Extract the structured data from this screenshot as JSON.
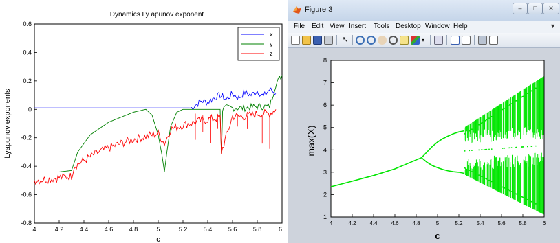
{
  "left_plot": {
    "chart_data": {
      "type": "line",
      "title": "Dynamics Ly apunov exponent",
      "xlabel": "c",
      "ylabel": "Lyapunov exponents",
      "xlim": [
        4,
        6
      ],
      "ylim": [
        -0.8,
        0.6
      ],
      "xticks": [
        "4",
        "4.2",
        "4.4",
        "4.6",
        "4.8",
        "5",
        "5.2",
        "5.4",
        "5.6",
        "5.8",
        "6"
      ],
      "yticks": [
        "-0.8",
        "-0.6",
        "-0.4",
        "-0.2",
        "0",
        "0.2",
        "0.4",
        "0.6"
      ],
      "legend_position": "top-right",
      "series": [
        {
          "name": "x",
          "color": "#0000ff",
          "x": [
            4.0,
            5.2,
            5.27,
            5.3,
            5.35,
            5.4,
            5.45,
            5.5,
            5.55,
            5.6,
            5.65,
            5.7,
            5.75,
            5.8,
            5.85,
            5.9,
            5.95
          ],
          "y": [
            0.01,
            0.01,
            0.01,
            0.03,
            0.06,
            0.05,
            0.08,
            0.1,
            0.07,
            0.11,
            0.08,
            0.12,
            0.1,
            0.13,
            0.09,
            0.14,
            0.11
          ]
        },
        {
          "name": "y",
          "color": "#008000",
          "x": [
            4.0,
            4.2,
            4.3,
            4.35,
            4.45,
            4.6,
            4.8,
            4.9,
            4.95,
            5.0,
            5.03,
            5.05,
            5.07,
            5.1,
            5.15,
            5.2,
            5.25,
            5.3,
            5.4,
            5.5,
            5.51,
            5.52,
            5.55,
            5.7,
            5.8,
            5.9,
            5.95,
            6.0
          ],
          "y": [
            -0.44,
            -0.44,
            -0.43,
            -0.3,
            -0.18,
            -0.09,
            -0.02,
            0.0,
            -0.04,
            -0.18,
            -0.32,
            -0.44,
            -0.3,
            -0.12,
            -0.02,
            0.0,
            0.0,
            0.0,
            0.0,
            0.0,
            -0.32,
            0.0,
            0.01,
            0.01,
            0.02,
            0.02,
            0.18,
            0.24
          ]
        },
        {
          "name": "z",
          "color": "#ff0000",
          "x": [
            4.0,
            4.1,
            4.2,
            4.3,
            4.32,
            4.4,
            4.5,
            4.6,
            4.7,
            4.8,
            4.9,
            5.0,
            5.05,
            5.1,
            5.2,
            5.3,
            5.4,
            5.5,
            5.51,
            5.6,
            5.7,
            5.8,
            5.9,
            5.95
          ],
          "y": [
            -0.5,
            -0.49,
            -0.48,
            -0.47,
            -0.4,
            -0.36,
            -0.31,
            -0.27,
            -0.24,
            -0.21,
            -0.19,
            -0.17,
            -0.24,
            -0.14,
            -0.11,
            -0.09,
            -0.07,
            -0.06,
            -0.3,
            -0.05,
            -0.05,
            -0.03,
            -0.03,
            0.0
          ]
        }
      ]
    }
  },
  "figure_window": {
    "title": "Figure 3",
    "controls": [
      "minimize",
      "maximize",
      "close"
    ],
    "menu": [
      "File",
      "Edit",
      "View",
      "Insert",
      "Tools",
      "Desktop",
      "Window",
      "Help"
    ],
    "toolbar_icons": [
      "new-icon",
      "open-icon",
      "save-icon",
      "print-icon",
      "pointer-icon",
      "zoom-in-icon",
      "zoom-out-icon",
      "pan-icon",
      "rotate-icon",
      "data-cursor-icon",
      "brush-icon",
      "link-icon",
      "colorbar-icon",
      "legend-icon",
      "hide-plot-tools-icon",
      "show-plot-tools-icon"
    ],
    "chart_data": {
      "type": "scatter",
      "xlabel": "c",
      "ylabel": "max(X)",
      "xlim": [
        4,
        6
      ],
      "ylim": [
        1,
        8
      ],
      "xticks": [
        "4",
        "4.2",
        "4.4",
        "4.6",
        "4.8",
        "5",
        "5.2",
        "5.4",
        "5.6",
        "5.8",
        "6"
      ],
      "yticks": [
        "1",
        "2",
        "3",
        "4",
        "5",
        "6",
        "7",
        "8"
      ],
      "color": "#00e600",
      "branches": [
        {
          "x": [
            4.0,
            4.2,
            4.4,
            4.6,
            4.75,
            4.85
          ],
          "y": [
            2.35,
            2.6,
            2.85,
            3.15,
            3.45,
            3.65
          ]
        },
        {
          "x": [
            4.85,
            4.9,
            4.95,
            5.0,
            5.05,
            5.1,
            5.15,
            5.2,
            5.25
          ],
          "y": [
            3.65,
            3.9,
            4.15,
            4.35,
            4.5,
            4.62,
            4.72,
            4.8,
            4.85
          ]
        },
        {
          "x": [
            4.85,
            4.9,
            4.95,
            5.0,
            5.05,
            5.1,
            5.15,
            5.2,
            5.25
          ],
          "y": [
            3.65,
            3.45,
            3.3,
            3.2,
            3.12,
            3.06,
            3.02,
            3.0,
            2.95
          ]
        }
      ],
      "chaos_region": {
        "x_start": 5.25,
        "x_end": 6.0,
        "upper": [
          5.0,
          7.3
        ],
        "lower": [
          2.9,
          1.1
        ]
      }
    }
  }
}
